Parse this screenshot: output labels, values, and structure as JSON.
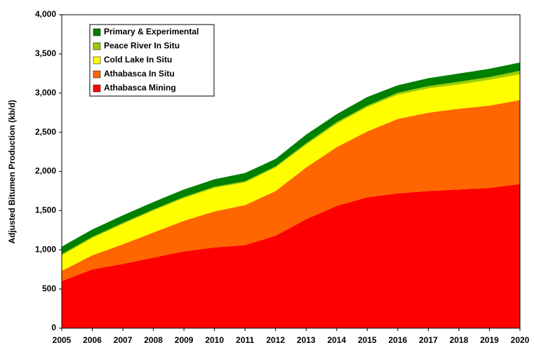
{
  "chart_data": {
    "type": "stacked_area",
    "y_label": "Adjusted Bitumen Production (kb/d)",
    "categories": [
      "2005",
      "2006",
      "2007",
      "2008",
      "2009",
      "2010",
      "2011",
      "2012",
      "2013",
      "2014",
      "2015",
      "2016",
      "2017",
      "2018",
      "2019",
      "2020"
    ],
    "series": [
      {
        "name": "Athabasca Mining",
        "color": "#ff0000",
        "values": [
          600,
          750,
          820,
          900,
          980,
          1030,
          1060,
          1180,
          1390,
          1560,
          1670,
          1720,
          1750,
          1770,
          1790,
          1840
        ]
      },
      {
        "name": "Athabasca In Situ",
        "color": "#ff6600",
        "values": [
          130,
          180,
          250,
          320,
          390,
          460,
          510,
          570,
          660,
          750,
          840,
          950,
          1000,
          1030,
          1050,
          1070
        ]
      },
      {
        "name": "Cold Lake In Situ",
        "color": "#ffff00",
        "values": [
          200,
          220,
          260,
          280,
          290,
          300,
          290,
          300,
          290,
          300,
          310,
          310,
          310,
          310,
          330,
          330
        ]
      },
      {
        "name": "Peace River In Situ",
        "color": "#99cc00",
        "values": [
          15,
          15,
          15,
          15,
          15,
          15,
          15,
          15,
          20,
          20,
          20,
          25,
          30,
          35,
          35,
          45
        ]
      },
      {
        "name": "Primary & Experimental",
        "color": "#008000",
        "values": [
          95,
          95,
          95,
          95,
          95,
          95,
          105,
          95,
          110,
          100,
          110,
          95,
          100,
          105,
          105,
          105
        ]
      }
    ],
    "ylim": [
      0,
      4000
    ],
    "yticks": [
      0,
      500,
      {
        "value": 1000,
        "label": "1,000"
      },
      {
        "value": 1500,
        "label": "1,500"
      },
      {
        "value": 2000,
        "label": "2,000"
      },
      {
        "value": 2500,
        "label": "2,500"
      },
      {
        "value": 3000,
        "label": "3,000"
      },
      {
        "value": 3500,
        "label": "3,500"
      },
      {
        "value": 4000,
        "label": "4,000"
      }
    ],
    "legend": "upper left"
  }
}
